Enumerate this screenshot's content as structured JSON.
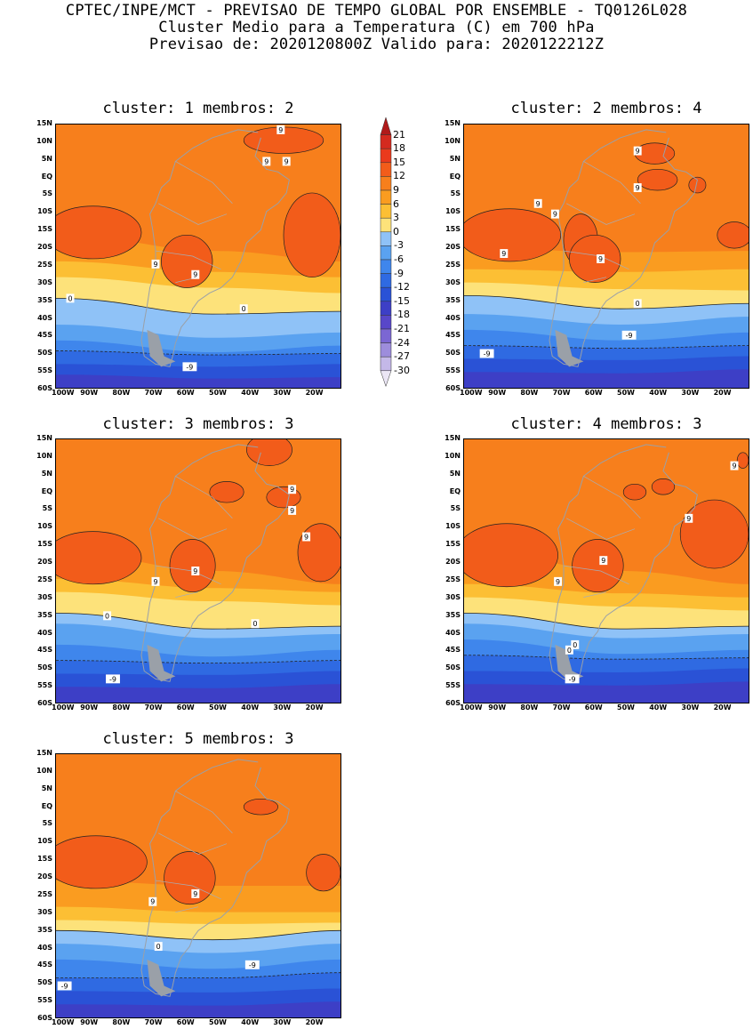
{
  "header": {
    "line1": "CPTEC/INPE/MCT - PREVISAO DE TEMPO GLOBAL POR ENSEMBLE - TQ0126L028",
    "line2": "Cluster Medio para a Temperatura (C) em 700 hPa",
    "line3": "Previsao de: 2020120800Z   Valido para: 2020122212Z"
  },
  "axes": {
    "lat": [
      "15N",
      "10N",
      "5N",
      "EQ",
      "5S",
      "10S",
      "15S",
      "20S",
      "25S",
      "30S",
      "35S",
      "40S",
      "45S",
      "50S",
      "55S",
      "60S"
    ],
    "lon": [
      "100W",
      "90W",
      "80W",
      "70W",
      "60W",
      "50W",
      "40W",
      "30W",
      "20W"
    ]
  },
  "colorbar": {
    "labels": [
      "21",
      "18",
      "15",
      "12",
      "9",
      "6",
      "3",
      "0",
      "-3",
      "-6",
      "-9",
      "-12",
      "-15",
      "-18",
      "-21",
      "-24",
      "-27",
      "-30"
    ],
    "colors": [
      "#b01a1a",
      "#d42a1f",
      "#ea3a1c",
      "#f25c1a",
      "#f77f1c",
      "#fa9c20",
      "#fcbf34",
      "#fde27a",
      "#8fc2f7",
      "#5aa2f0",
      "#3f86ec",
      "#2f6ae2",
      "#2a52d6",
      "#3d3fc6",
      "#5847c9",
      "#7b67d3",
      "#9d8ddc",
      "#c4b8e8",
      "#ebe6f5"
    ]
  },
  "panels": [
    {
      "title": "cluster: 1   membros: 2",
      "contour_labels": [
        "9",
        "9",
        "9",
        "9",
        "9",
        "0",
        "0",
        "-9"
      ]
    },
    {
      "title": "cluster: 2   membros: 4",
      "contour_labels": [
        "9",
        "9",
        "9",
        "9",
        "9",
        "9",
        "0",
        "-9",
        "-9"
      ]
    },
    {
      "title": "cluster: 3   membros: 3",
      "contour_labels": [
        "9",
        "9",
        "9",
        "9",
        "9",
        "0",
        "0",
        "-9"
      ]
    },
    {
      "title": "cluster: 4   membros: 3",
      "contour_labels": [
        "9",
        "9",
        "9",
        "9",
        "0",
        "0",
        "-9"
      ]
    },
    {
      "title": "cluster: 5   membros: 3",
      "contour_labels": [
        "9",
        "9",
        "0",
        "-9",
        "-9"
      ]
    }
  ]
}
